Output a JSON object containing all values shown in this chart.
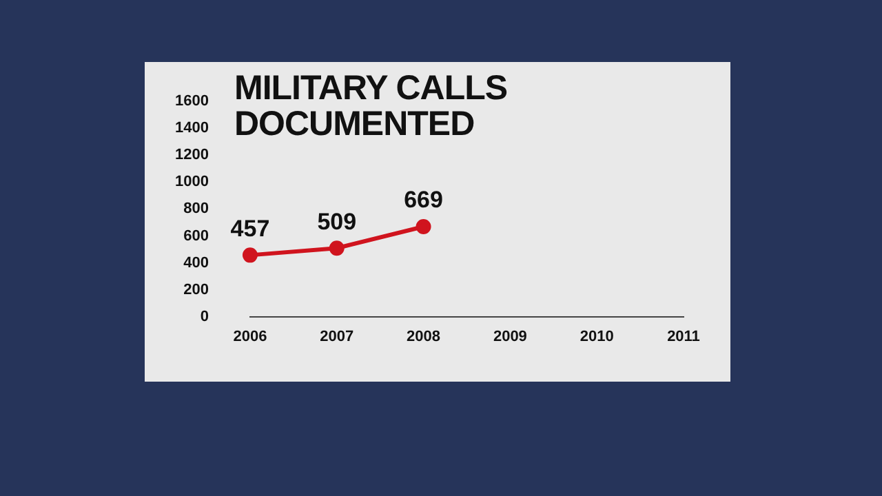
{
  "chart_data": {
    "type": "line",
    "title": "MILITARY CALLS DOCUMENTED",
    "categories": [
      "2006",
      "2007",
      "2008",
      "2009",
      "2010",
      "2011"
    ],
    "series": [
      {
        "color": "#d0141e",
        "values": [
          457,
          509,
          669,
          null,
          null,
          null
        ]
      }
    ],
    "ylim": [
      0,
      1600
    ],
    "yticks": [
      0,
      200,
      400,
      600,
      800,
      1000,
      1200,
      1400,
      1600
    ],
    "data_labels": true,
    "marker": "circle"
  }
}
